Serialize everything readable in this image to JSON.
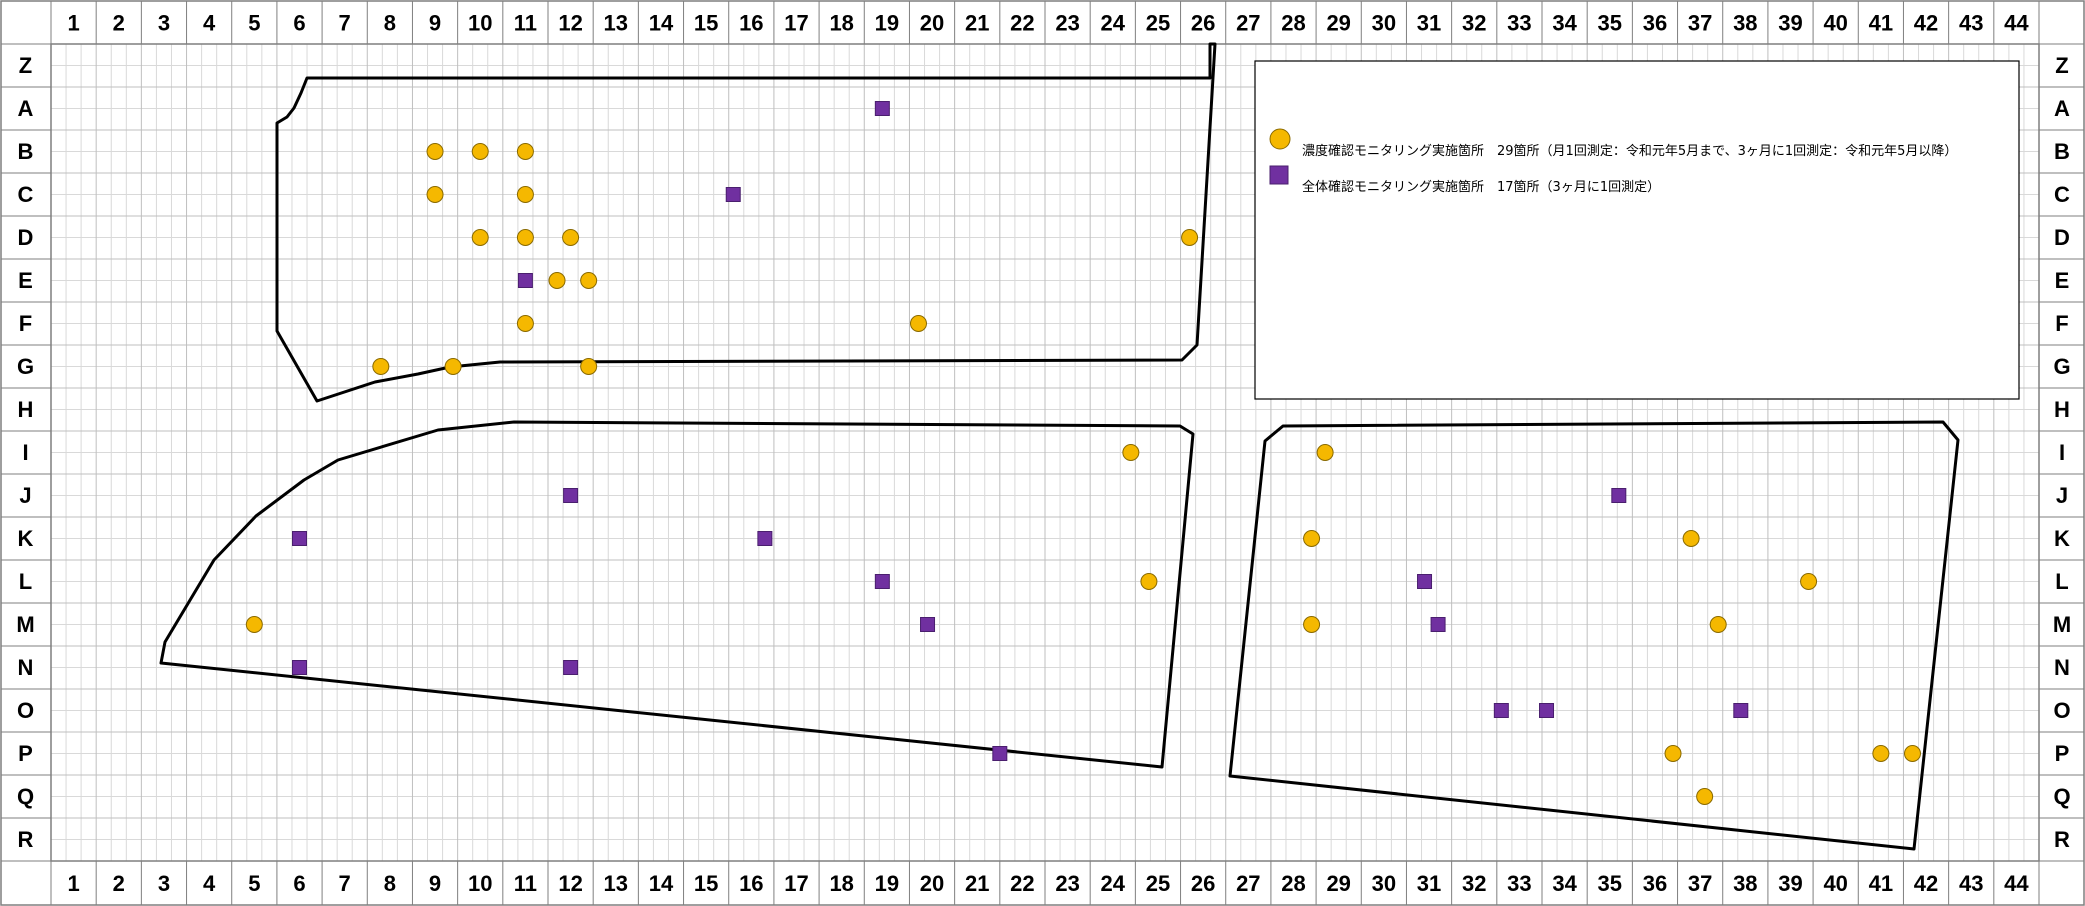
{
  "columns": [
    "1",
    "2",
    "3",
    "4",
    "5",
    "6",
    "7",
    "8",
    "9",
    "10",
    "11",
    "12",
    "13",
    "14",
    "15",
    "16",
    "17",
    "18",
    "19",
    "20",
    "21",
    "22",
    "23",
    "24",
    "25",
    "26",
    "27",
    "28",
    "29",
    "30",
    "31",
    "32",
    "33",
    "34",
    "35",
    "36",
    "37",
    "38",
    "39",
    "40",
    "41",
    "42",
    "43",
    "44"
  ],
  "rows": [
    "Z",
    "A",
    "B",
    "C",
    "D",
    "E",
    "F",
    "G",
    "H",
    "I",
    "J",
    "K",
    "L",
    "M",
    "N",
    "O",
    "P",
    "Q",
    "R"
  ],
  "legend": {
    "concentration_label": "濃度確認モニタリング実施箇所　29箇所（月1回測定：令和元年5月まで、3ヶ月に1回測定：令和元年5月以降）",
    "overall_label": "全体確認モニタリング実施箇所　17箇所（3ヶ月に1回測定）"
  },
  "colors": {
    "concentration": "#f5b800",
    "overall": "#7030a0",
    "grid_minor": "#d9d9d9",
    "grid_major": "#bfbfbf",
    "outline": "#000000"
  },
  "sites_concentration": [
    {
      "col": 9.0,
      "row": "A/B"
    },
    {
      "col": 10.0,
      "row": "B"
    },
    {
      "col": 11.0,
      "row": "B"
    },
    {
      "col": 9.0,
      "row": "B/C"
    },
    {
      "col": 11.0,
      "row": "C"
    },
    {
      "col": 10.0,
      "row": "D"
    },
    {
      "col": 11.0,
      "row": "D"
    },
    {
      "col": 12.0,
      "row": "D"
    },
    {
      "col": 11.7,
      "row": "E"
    },
    {
      "col": 12.4,
      "row": "E"
    },
    {
      "col": 11.0,
      "row": "F"
    },
    {
      "col": 9.4,
      "row": "F/G"
    },
    {
      "col": 7.8,
      "row": "G"
    },
    {
      "col": 12.4,
      "row": "G"
    },
    {
      "col": 19.7,
      "row": "E/F"
    },
    {
      "col": 25.7,
      "row": "C/D"
    },
    {
      "col": 24.4,
      "row": "I"
    },
    {
      "col": 24.8,
      "row": "L"
    },
    {
      "col": 5.0,
      "row": "M"
    },
    {
      "col": 28.7,
      "row": "I"
    },
    {
      "col": 28.4,
      "row": "K"
    },
    {
      "col": 28.4,
      "row": "L/M"
    },
    {
      "col": 36.8,
      "row": "K"
    },
    {
      "col": 39.4,
      "row": "L"
    },
    {
      "col": 37.4,
      "row": "M"
    },
    {
      "col": 36.4,
      "row": "P"
    },
    {
      "col": 41.7,
      "row": "O/P"
    },
    {
      "col": 41.0,
      "row": "P"
    },
    {
      "col": 37.1,
      "row": "Q"
    }
  ],
  "sites_overall": [
    {
      "col": 18.9,
      "row": "A"
    },
    {
      "col": 15.6,
      "row": "B/C"
    },
    {
      "col": 11.0,
      "row": "E"
    },
    {
      "col": 12.0,
      "row": "J"
    },
    {
      "col": 6.0,
      "row": "K"
    },
    {
      "col": 16.3,
      "row": "K"
    },
    {
      "col": 18.9,
      "row": "K/L"
    },
    {
      "col": 19.9,
      "row": "M"
    },
    {
      "col": 6.0,
      "row": "N"
    },
    {
      "col": 12.0,
      "row": "N"
    },
    {
      "col": 21.5,
      "row": "P"
    },
    {
      "col": 35.2,
      "row": "J"
    },
    {
      "col": 30.9,
      "row": "L"
    },
    {
      "col": 31.2,
      "row": "M"
    },
    {
      "col": 32.6,
      "row": "N/O"
    },
    {
      "col": 33.6,
      "row": "O"
    },
    {
      "col": 37.9,
      "row": "O"
    }
  ]
}
